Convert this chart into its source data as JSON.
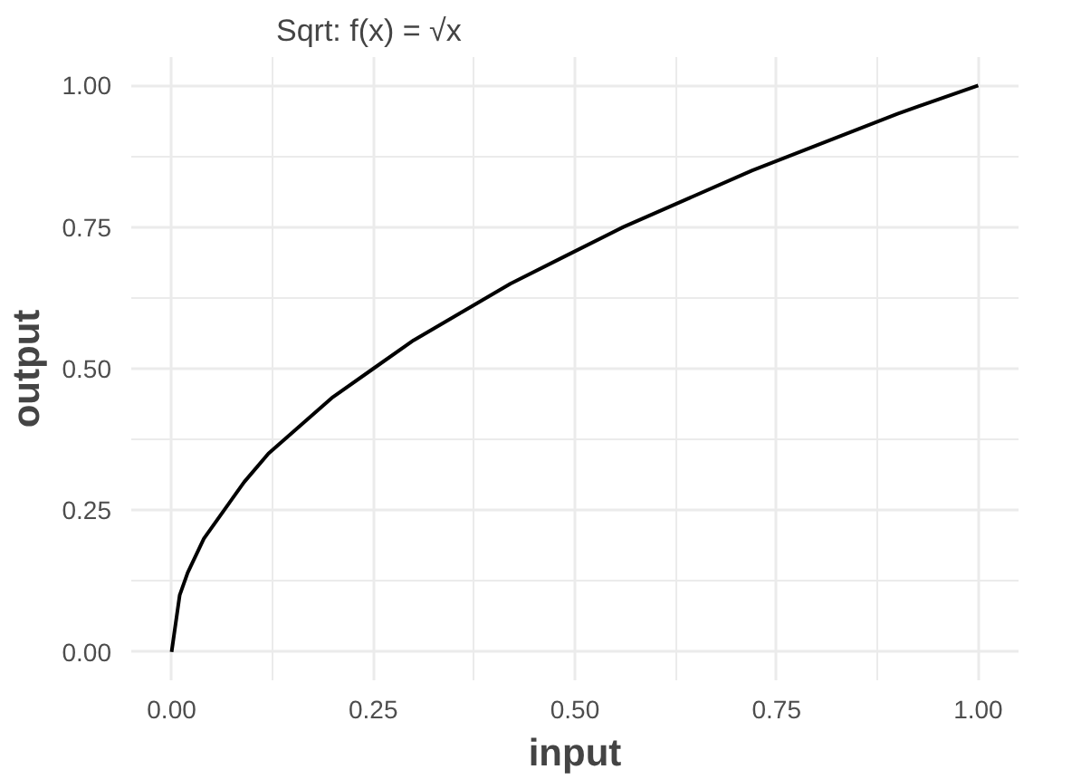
{
  "chart_data": {
    "type": "line",
    "title": "Sqrt: f(x) = √x",
    "xlabel": "input",
    "ylabel": "output",
    "x": [
      0,
      0.01,
      0.02,
      0.04,
      0.06,
      0.09,
      0.12,
      0.16,
      0.2,
      0.25,
      0.3,
      0.36,
      0.42,
      0.49,
      0.56,
      0.64,
      0.72,
      0.81,
      0.9,
      1
    ],
    "series": [
      {
        "color": "#000000",
        "values": [
          0,
          0.1,
          0.14,
          0.2,
          0.24,
          0.3,
          0.35,
          0.4,
          0.45,
          0.5,
          0.55,
          0.6,
          0.65,
          0.7,
          0.75,
          0.8,
          0.85,
          0.9,
          0.95,
          1
        ]
      }
    ],
    "xlim": [
      -0.05,
      1.05
    ],
    "ylim": [
      -0.05,
      1.05
    ],
    "xticks": [
      {
        "value": 0,
        "label": "0.00"
      },
      {
        "value": 0.25,
        "label": "0.25"
      },
      {
        "value": 0.5,
        "label": "0.50"
      },
      {
        "value": 0.75,
        "label": "0.75"
      },
      {
        "value": 1,
        "label": "1.00"
      }
    ],
    "yticks": [
      {
        "value": 0,
        "label": "0.00"
      },
      {
        "value": 0.25,
        "label": "0.25"
      },
      {
        "value": 0.5,
        "label": "0.50"
      },
      {
        "value": 0.75,
        "label": "0.75"
      },
      {
        "value": 1,
        "label": "1.00"
      }
    ],
    "grid": true
  }
}
